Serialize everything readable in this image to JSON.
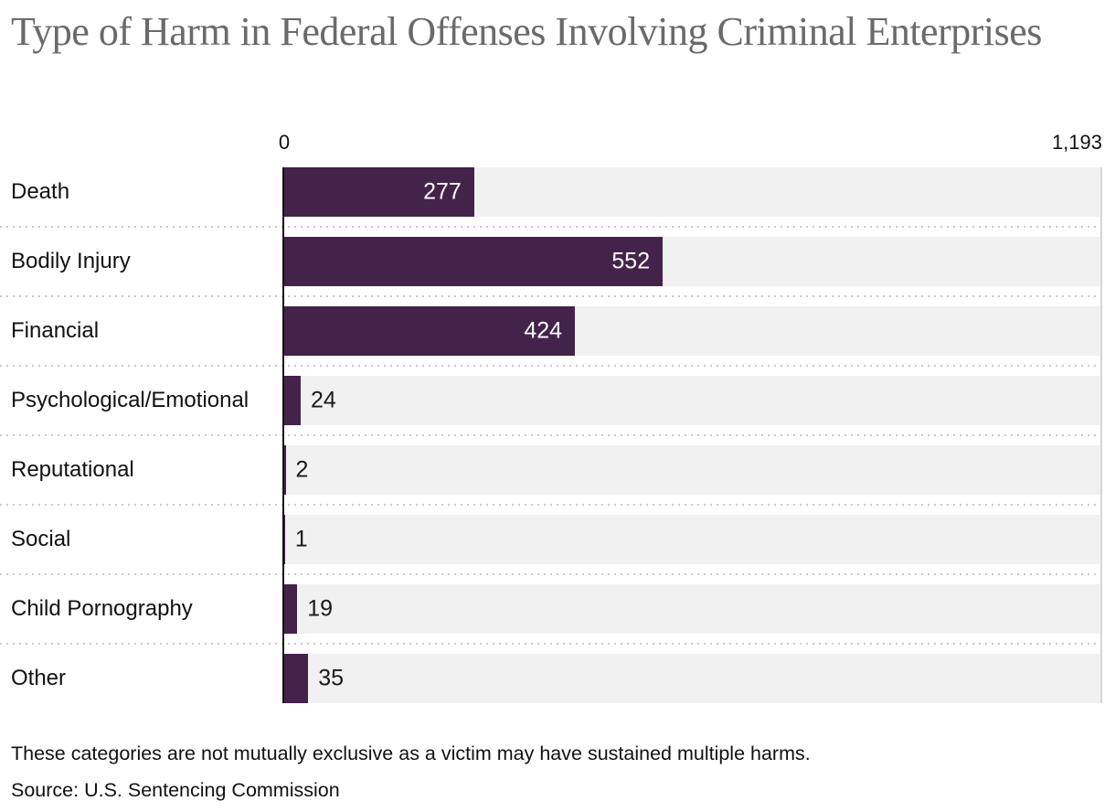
{
  "title": "Type of Harm in Federal Offenses Involving Criminal Enterprises",
  "axis": {
    "min_label": "0",
    "max_label": "1,193"
  },
  "chart_data": {
    "type": "bar",
    "orientation": "horizontal",
    "title": "Type of Harm in Federal Offenses Involving Criminal Enterprises",
    "categories": [
      "Death",
      "Bodily Injury",
      "Financial",
      "Psychological/Emotional",
      "Reputational",
      "Social",
      "Child Pornography",
      "Other"
    ],
    "values": [
      277,
      552,
      424,
      24,
      2,
      1,
      19,
      35
    ],
    "value_labels": [
      "277",
      "552",
      "424",
      "24",
      "2",
      "1",
      "19",
      "35"
    ],
    "xlim": [
      0,
      1193
    ],
    "x_tick_labels": [
      "0",
      "1,193"
    ],
    "grid": "dotted-row-separators",
    "legend": "none",
    "bar_color": "#44234b",
    "track_color": "#f1f1f1",
    "inside_label_color": "#ffffff",
    "outside_label_color": "#1a1a1a"
  },
  "notes": {
    "caption": "These categories are not mutually exclusive as a victim may have sustained multiple harms.",
    "source": "Source: U.S. Sentencing Commission"
  }
}
